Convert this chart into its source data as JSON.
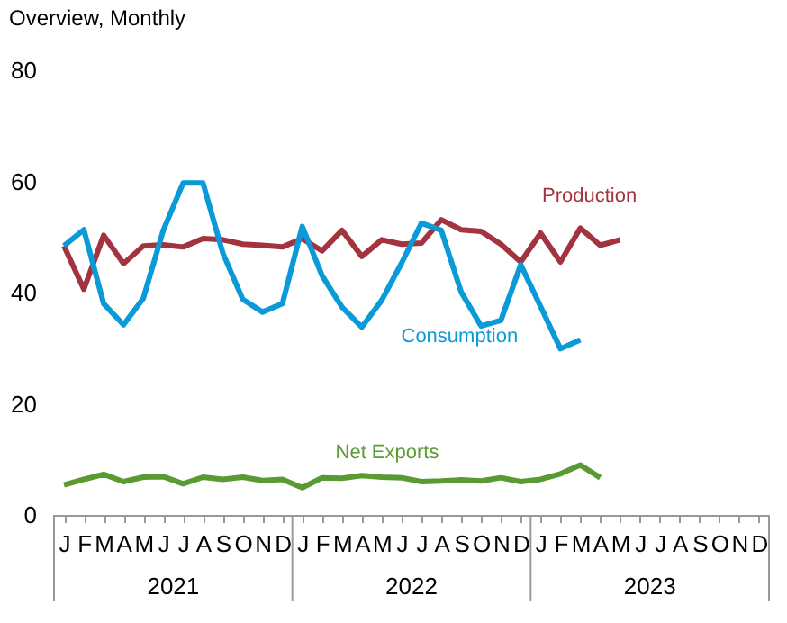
{
  "chart_data": {
    "type": "line",
    "title": "Overview, Monthly",
    "categories": [
      "J",
      "F",
      "M",
      "A",
      "M",
      "J",
      "J",
      "A",
      "S",
      "O",
      "N",
      "D",
      "J",
      "F",
      "M",
      "A",
      "M",
      "J",
      "J",
      "A",
      "S",
      "O",
      "N",
      "D",
      "J",
      "F",
      "M",
      "A",
      "M",
      "J",
      "J",
      "A",
      "S",
      "O",
      "N",
      "D"
    ],
    "series": [
      {
        "name": "Production",
        "color": "#a3343f",
        "values": [
          48.4,
          40.6,
          50.3,
          45.2,
          48.4,
          48.6,
          48.2,
          49.7,
          49.5,
          48.7,
          48.5,
          48.2,
          49.7,
          47.5,
          51.2,
          46.5,
          49.5,
          48.7,
          48.9,
          53.1,
          51.3,
          51.0,
          48.7,
          45.5,
          50.7,
          45.5,
          51.6,
          48.5,
          49.5,
          null,
          null,
          null,
          null,
          null,
          null,
          null
        ]
      },
      {
        "name": "Consumption",
        "color": "#0a9ad7",
        "values": [
          48.4,
          51.3,
          38.0,
          34.2,
          39.0,
          51.2,
          59.7,
          59.7,
          47.1,
          38.8,
          36.5,
          38.0,
          51.9,
          43.0,
          37.4,
          33.8,
          38.6,
          45.3,
          52.5,
          51.2,
          40.1,
          34.0,
          35.0,
          45.0,
          37.5,
          29.9,
          31.5,
          null,
          null,
          null,
          null,
          null,
          null,
          null,
          null,
          null
        ]
      },
      {
        "name": "Net Exports",
        "color": "#5a9a32",
        "values": [
          5.4,
          6.4,
          7.3,
          6.0,
          6.8,
          6.9,
          5.6,
          6.8,
          6.4,
          6.8,
          6.2,
          6.4,
          4.9,
          6.7,
          6.6,
          7.1,
          6.8,
          6.7,
          6.0,
          6.1,
          6.3,
          6.1,
          6.7,
          6.0,
          6.4,
          7.4,
          9.0,
          6.7,
          null,
          null,
          null,
          null,
          null,
          null,
          null,
          null
        ]
      }
    ],
    "annotations": [
      "2021",
      "2022",
      "2023"
    ],
    "ylim": [
      0,
      80
    ],
    "yticks": [
      0,
      20,
      40,
      60,
      80
    ],
    "grid": false,
    "legend": false,
    "marker": "none",
    "line_style": "solid"
  }
}
